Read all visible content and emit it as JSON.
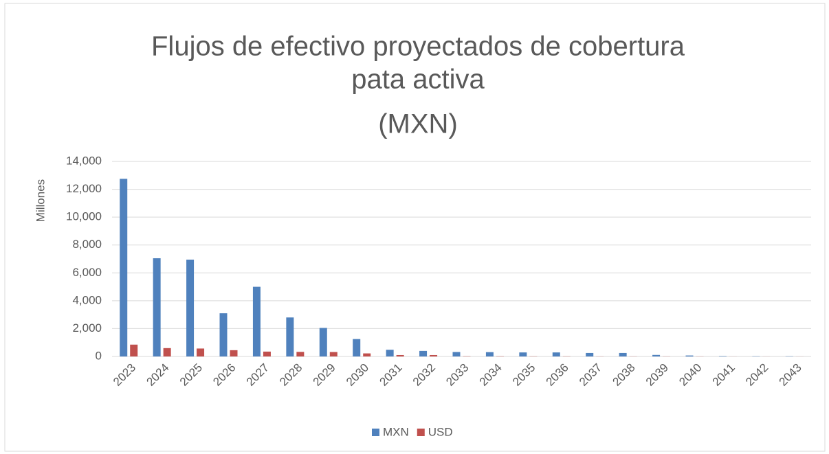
{
  "chart_data": {
    "type": "bar",
    "title": [
      "Flujos de efectivo proyectados de cobertura",
      "pata activa",
      "(MXN)"
    ],
    "y_label": "Millones",
    "categories": [
      "2023",
      "2024",
      "2025",
      "2026",
      "2027",
      "2028",
      "2029",
      "2030",
      "2031",
      "2032",
      "2033",
      "2034",
      "2035",
      "2036",
      "2037",
      "2038",
      "2039",
      "2040",
      "2041",
      "2042",
      "2043"
    ],
    "series": [
      {
        "name": "MXN",
        "color": "#4f81bd",
        "values": [
          12750,
          7050,
          6950,
          3100,
          5000,
          2800,
          2050,
          1250,
          480,
          400,
          320,
          310,
          290,
          290,
          250,
          250,
          110,
          70,
          30,
          20,
          20
        ]
      },
      {
        "name": "USD",
        "color": "#c0504d",
        "values": [
          850,
          600,
          570,
          450,
          350,
          330,
          320,
          220,
          100,
          100,
          20,
          20,
          15,
          15,
          10,
          10,
          10,
          10,
          5,
          5,
          5
        ]
      }
    ],
    "ylim": [
      0,
      14000
    ],
    "yticks": [
      0,
      {
        "value": 2000,
        "label": "2,000"
      },
      {
        "value": 4000,
        "label": "4,000"
      },
      {
        "value": 6000,
        "label": "6,000"
      },
      {
        "value": 8000,
        "label": "8,000"
      },
      {
        "value": 10000,
        "label": "10,000"
      },
      {
        "value": 12000,
        "label": "12,000"
      },
      {
        "value": 14000,
        "label": "14,000"
      }
    ],
    "grid": true,
    "legend": "bottom"
  }
}
